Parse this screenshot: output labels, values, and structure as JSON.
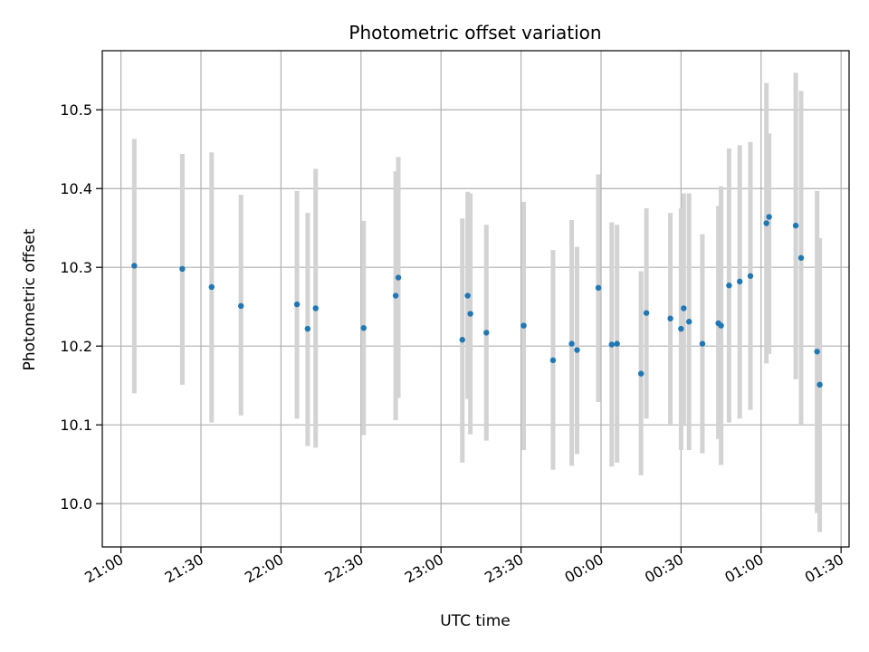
{
  "chart_data": {
    "type": "scatter",
    "title": "Photometric offset variation",
    "xlabel": "UTC time",
    "ylabel": "Photometric offset",
    "grid": true,
    "x_axis_kind": "time",
    "xlim": [
      "20:53",
      "01:33"
    ],
    "ylim": [
      9.945,
      10.575
    ],
    "x_ticks": [
      "21:00",
      "21:30",
      "22:00",
      "22:30",
      "23:00",
      "23:30",
      "00:00",
      "00:30",
      "01:00",
      "01:30"
    ],
    "y_ticks": [
      10.0,
      10.1,
      10.2,
      10.3,
      10.4,
      10.5
    ],
    "marker_color": "#1f77b4",
    "errorbar_color": "#d3d3d3",
    "points": [
      {
        "t": "21:05",
        "y": 10.302,
        "lo": 10.14,
        "hi": 10.463
      },
      {
        "t": "21:23",
        "y": 10.298,
        "lo": 10.151,
        "hi": 10.444
      },
      {
        "t": "21:34",
        "y": 10.275,
        "lo": 10.103,
        "hi": 10.446
      },
      {
        "t": "21:45",
        "y": 10.251,
        "lo": 10.112,
        "hi": 10.392
      },
      {
        "t": "22:06",
        "y": 10.253,
        "lo": 10.108,
        "hi": 10.397
      },
      {
        "t": "22:10",
        "y": 10.222,
        "lo": 10.073,
        "hi": 10.369
      },
      {
        "t": "22:13",
        "y": 10.248,
        "lo": 10.071,
        "hi": 10.425
      },
      {
        "t": "22:31",
        "y": 10.223,
        "lo": 10.087,
        "hi": 10.359
      },
      {
        "t": "22:43",
        "y": 10.264,
        "lo": 10.106,
        "hi": 10.422
      },
      {
        "t": "22:44",
        "y": 10.287,
        "lo": 10.134,
        "hi": 10.44
      },
      {
        "t": "23:08",
        "y": 10.208,
        "lo": 10.052,
        "hi": 10.362
      },
      {
        "t": "23:10",
        "y": 10.264,
        "lo": 10.133,
        "hi": 10.396
      },
      {
        "t": "23:11",
        "y": 10.241,
        "lo": 10.088,
        "hi": 10.394
      },
      {
        "t": "23:17",
        "y": 10.217,
        "lo": 10.08,
        "hi": 10.354
      },
      {
        "t": "23:31",
        "y": 10.226,
        "lo": 10.068,
        "hi": 10.383
      },
      {
        "t": "23:42",
        "y": 10.182,
        "lo": 10.043,
        "hi": 10.322
      },
      {
        "t": "23:49",
        "y": 10.203,
        "lo": 10.048,
        "hi": 10.36
      },
      {
        "t": "23:51",
        "y": 10.195,
        "lo": 10.063,
        "hi": 10.326
      },
      {
        "t": "23:59",
        "y": 10.274,
        "lo": 10.129,
        "hi": 10.418
      },
      {
        "t": "00:04",
        "y": 10.202,
        "lo": 10.047,
        "hi": 10.357
      },
      {
        "t": "00:06",
        "y": 10.203,
        "lo": 10.052,
        "hi": 10.354
      },
      {
        "t": "00:15",
        "y": 10.165,
        "lo": 10.036,
        "hi": 10.295
      },
      {
        "t": "00:17",
        "y": 10.242,
        "lo": 10.108,
        "hi": 10.375
      },
      {
        "t": "00:26",
        "y": 10.235,
        "lo": 10.101,
        "hi": 10.369
      },
      {
        "t": "00:30",
        "y": 10.222,
        "lo": 10.068,
        "hi": 10.375
      },
      {
        "t": "00:31",
        "y": 10.248,
        "lo": 10.101,
        "hi": 10.394
      },
      {
        "t": "00:33",
        "y": 10.231,
        "lo": 10.068,
        "hi": 10.394
      },
      {
        "t": "00:38",
        "y": 10.203,
        "lo": 10.064,
        "hi": 10.342
      },
      {
        "t": "00:44",
        "y": 10.229,
        "lo": 10.082,
        "hi": 10.378
      },
      {
        "t": "00:45",
        "y": 10.226,
        "lo": 10.049,
        "hi": 10.403
      },
      {
        "t": "00:48",
        "y": 10.277,
        "lo": 10.103,
        "hi": 10.451
      },
      {
        "t": "00:52",
        "y": 10.282,
        "lo": 10.108,
        "hi": 10.455
      },
      {
        "t": "00:56",
        "y": 10.289,
        "lo": 10.119,
        "hi": 10.459
      },
      {
        "t": "01:02",
        "y": 10.356,
        "lo": 10.178,
        "hi": 10.534
      },
      {
        "t": "01:03",
        "y": 10.364,
        "lo": 10.19,
        "hi": 10.47
      },
      {
        "t": "01:13",
        "y": 10.353,
        "lo": 10.158,
        "hi": 10.547
      },
      {
        "t": "01:15",
        "y": 10.312,
        "lo": 10.1,
        "hi": 10.524
      },
      {
        "t": "01:21",
        "y": 10.193,
        "lo": 9.988,
        "hi": 10.397
      },
      {
        "t": "01:22",
        "y": 10.151,
        "lo": 9.964,
        "hi": 10.337
      }
    ]
  }
}
